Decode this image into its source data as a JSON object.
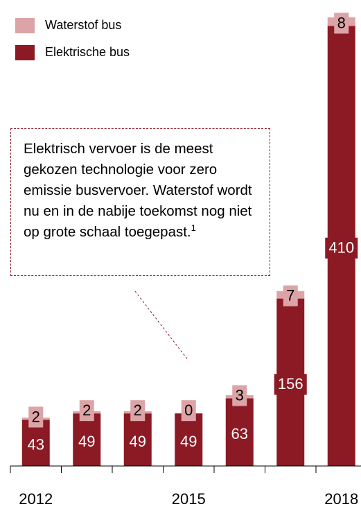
{
  "chart_data": {
    "type": "stacked_bar",
    "categories": [
      "2012",
      null,
      null,
      "2015",
      null,
      null,
      "2018"
    ],
    "series": [
      {
        "name": "Elektrische bus",
        "color": "#8b1a24",
        "values": [
          43,
          49,
          49,
          49,
          63,
          156,
          410
        ]
      },
      {
        "name": "Waterstof bus",
        "color": "#dca4a6",
        "values": [
          2,
          2,
          2,
          0,
          3,
          7,
          8
        ]
      }
    ],
    "ylim": [
      0,
      420
    ],
    "annotation": {
      "text": "Elektrisch vervoer is de meest gekozen technologie voor zero emissie busvervoer. Waterstof wordt nu en in de nabije toekomst nog niet op grote schaal toegepast.",
      "sup": "1"
    }
  }
}
